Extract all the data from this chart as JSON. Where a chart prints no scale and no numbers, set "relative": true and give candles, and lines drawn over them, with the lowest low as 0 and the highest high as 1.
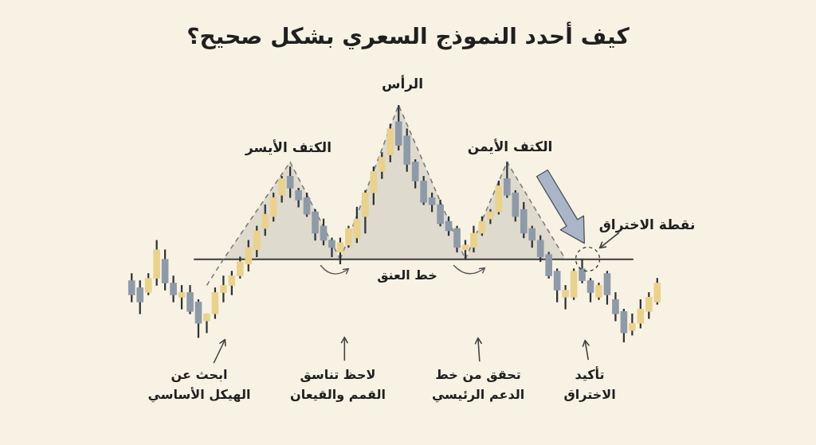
{
  "chart_data": {
    "type": "candlestick",
    "title": "كيف أحدد النموذج السعري بشكل صحيح؟",
    "relative": true,
    "categories": [
      null,
      null,
      null,
      null,
      null,
      null,
      null,
      null,
      null,
      null,
      null,
      null,
      null,
      null,
      null,
      null,
      null,
      null,
      null,
      null,
      null,
      null,
      null,
      null,
      null,
      null,
      null,
      null,
      null,
      null,
      null,
      null,
      null,
      null,
      null,
      null,
      null,
      null,
      null,
      null,
      null,
      null,
      null,
      null,
      null,
      null,
      null,
      null,
      null,
      null,
      null,
      null,
      null,
      null,
      null,
      null,
      null,
      null,
      null,
      null,
      null,
      null,
      null,
      null
    ],
    "ohlc": [
      [
        0.26,
        0.29,
        0.17,
        0.2
      ],
      [
        0.23,
        0.26,
        0.12,
        0.17
      ],
      [
        0.21,
        0.29,
        0.2,
        0.27
      ],
      [
        0.27,
        0.43,
        0.24,
        0.39
      ],
      [
        0.35,
        0.39,
        0.22,
        0.25
      ],
      [
        0.25,
        0.28,
        0.17,
        0.2
      ],
      [
        0.19,
        0.24,
        0.14,
        0.21
      ],
      [
        0.21,
        0.24,
        0.12,
        0.13
      ],
      [
        0.17,
        0.18,
        0.02,
        0.08
      ],
      [
        0.09,
        0.12,
        0.04,
        0.12
      ],
      [
        0.12,
        0.23,
        0.1,
        0.21
      ],
      [
        0.21,
        0.28,
        0.17,
        0.24
      ],
      [
        0.24,
        0.3,
        0.2,
        0.28
      ],
      [
        0.28,
        0.36,
        0.27,
        0.34
      ],
      [
        0.33,
        0.43,
        0.3,
        0.4
      ],
      [
        0.39,
        0.49,
        0.36,
        0.47
      ],
      [
        0.48,
        0.58,
        0.45,
        0.54
      ],
      [
        0.53,
        0.63,
        0.51,
        0.61
      ],
      [
        0.62,
        0.7,
        0.59,
        0.69
      ],
      [
        0.7,
        0.74,
        0.61,
        0.65
      ],
      [
        0.64,
        0.65,
        0.57,
        0.6
      ],
      [
        0.61,
        0.63,
        0.53,
        0.54
      ],
      [
        0.55,
        0.56,
        0.43,
        0.46
      ],
      [
        0.49,
        0.52,
        0.41,
        0.43
      ],
      [
        0.43,
        0.44,
        0.36,
        0.4
      ],
      [
        0.38,
        0.44,
        0.33,
        0.42
      ],
      [
        0.41,
        0.49,
        0.4,
        0.48
      ],
      [
        0.44,
        0.57,
        0.42,
        0.52
      ],
      [
        0.53,
        0.64,
        0.46,
        0.63
      ],
      [
        0.63,
        0.74,
        0.58,
        0.72
      ],
      [
        0.72,
        0.8,
        0.69,
        0.78
      ],
      [
        0.79,
        0.92,
        0.76,
        0.9
      ],
      [
        0.93,
        1.0,
        0.81,
        0.83
      ],
      [
        0.87,
        0.9,
        0.72,
        0.75
      ],
      [
        0.76,
        0.77,
        0.65,
        0.68
      ],
      [
        0.68,
        0.7,
        0.58,
        0.59
      ],
      [
        0.61,
        0.63,
        0.55,
        0.58
      ],
      [
        0.58,
        0.6,
        0.49,
        0.5
      ],
      [
        0.51,
        0.53,
        0.45,
        0.47
      ],
      [
        0.48,
        0.49,
        0.38,
        0.4
      ],
      [
        0.39,
        0.43,
        0.35,
        0.41
      ],
      [
        0.4,
        0.49,
        0.38,
        0.46
      ],
      [
        0.46,
        0.53,
        0.45,
        0.51
      ],
      [
        0.52,
        0.56,
        0.5,
        0.55
      ],
      [
        0.55,
        0.68,
        0.54,
        0.66
      ],
      [
        0.69,
        0.76,
        0.61,
        0.62
      ],
      [
        0.63,
        0.64,
        0.51,
        0.53
      ],
      [
        0.56,
        0.59,
        0.44,
        0.46
      ],
      [
        0.48,
        0.49,
        0.4,
        0.43
      ],
      [
        0.43,
        0.45,
        0.34,
        0.36
      ],
      [
        0.37,
        0.38,
        0.27,
        0.28
      ],
      [
        0.3,
        0.31,
        0.17,
        0.22
      ],
      [
        0.19,
        0.24,
        0.14,
        0.22
      ],
      [
        0.19,
        0.31,
        0.18,
        0.3
      ],
      [
        0.31,
        0.35,
        0.25,
        0.26
      ],
      [
        0.26,
        0.27,
        0.17,
        0.21
      ],
      [
        0.19,
        0.25,
        0.18,
        0.24
      ],
      [
        0.29,
        0.3,
        0.16,
        0.2
      ],
      [
        0.18,
        0.21,
        0.09,
        0.12
      ],
      [
        0.13,
        0.14,
        0.0,
        0.04
      ],
      [
        0.05,
        0.12,
        0.03,
        0.08
      ],
      [
        0.08,
        0.18,
        0.06,
        0.14
      ],
      [
        0.13,
        0.21,
        0.1,
        0.19
      ],
      [
        0.17,
        0.27,
        0.16,
        0.25
      ]
    ],
    "colors": [
      "#8f9aa8",
      "#8f9aa8",
      "#e9d28e",
      "#e9d28e",
      "#8f9aa8",
      "#8f9aa8",
      "#e9d28e",
      "#8f9aa8",
      "#8f9aa8",
      "#e9d28e",
      "#e9d28e",
      "#e9d28e",
      "#e9d28e",
      "#e9d28e",
      "#e9d28e",
      "#e9d28e",
      "#e9d28e",
      "#e9d28e",
      "#e9d28e",
      "#8f9aa8",
      "#8f9aa8",
      "#8f9aa8",
      "#8f9aa8",
      "#8f9aa8",
      "#8f9aa8",
      "#e9d28e",
      "#e9d28e",
      "#e9d28e",
      "#e9d28e",
      "#e9d28e",
      "#e9d28e",
      "#e9d28e",
      "#8f9aa8",
      "#8f9aa8",
      "#8f9aa8",
      "#8f9aa8",
      "#8f9aa8",
      "#8f9aa8",
      "#8f9aa8",
      "#8f9aa8",
      "#e9d28e",
      "#e9d28e",
      "#e9d28e",
      "#e9d28e",
      "#e9d28e",
      "#8f9aa8",
      "#8f9aa8",
      "#8f9aa8",
      "#8f9aa8",
      "#8f9aa8",
      "#8f9aa8",
      "#8f9aa8",
      "#e9d28e",
      "#e9d28e",
      "#8f9aa8",
      "#8f9aa8",
      "#e9d28e",
      "#8f9aa8",
      "#8f9aa8",
      "#8f9aa8",
      "#e9d28e",
      "#e9d28e",
      "#e9d28e",
      "#e9d28e"
    ],
    "series": [
      {
        "type": "line",
        "color": "#7d7d7d",
        "line_style": "dashed",
        "marker": "none",
        "values": [
          null,
          null,
          null,
          null,
          null,
          null,
          null,
          null,
          null,
          0.24,
          null,
          0.35,
          null,
          null,
          null,
          null,
          null,
          null,
          null,
          0.76,
          null,
          null,
          null,
          null,
          null,
          0.35,
          null,
          null,
          null,
          null,
          null,
          null,
          null,
          null,
          null,
          null,
          null,
          null,
          null,
          null,
          null,
          null,
          null,
          null,
          null,
          null,
          null,
          null,
          null,
          null,
          null,
          null,
          null,
          null,
          null,
          null,
          null,
          null,
          null,
          null,
          null,
          null,
          null,
          null
        ],
        "lower": [
          null,
          null,
          null,
          null,
          null,
          null,
          null,
          null,
          null,
          null,
          null,
          0.35,
          null,
          null,
          null,
          null,
          null,
          null,
          null,
          0.35,
          null,
          null,
          null,
          null,
          null,
          0.35,
          null,
          null,
          null,
          null,
          null,
          null,
          null,
          null,
          null,
          null,
          null,
          null,
          null,
          null,
          null,
          null,
          null,
          null,
          null,
          null,
          null,
          null,
          null,
          null,
          null,
          null,
          null,
          null,
          null,
          null,
          null,
          null,
          null,
          null,
          null,
          null,
          null,
          null
        ],
        "upper": [
          null,
          null,
          null,
          null,
          null,
          null,
          null,
          null,
          null,
          null,
          null,
          0.35,
          null,
          null,
          null,
          null,
          null,
          null,
          null,
          0.76,
          null,
          null,
          null,
          null,
          null,
          0.35,
          null,
          null,
          null,
          null,
          null,
          null,
          null,
          null,
          null,
          null,
          null,
          null,
          null,
          null,
          null,
          null,
          null,
          null,
          null,
          null,
          null,
          null,
          null,
          null,
          null,
          null,
          null,
          null,
          null,
          null,
          null,
          null,
          null,
          null,
          null,
          null,
          null,
          null
        ]
      },
      {
        "type": "line",
        "color": "#7d7d7d",
        "line_style": "dashed",
        "marker": "none",
        "values": [
          null,
          null,
          null,
          null,
          null,
          null,
          null,
          null,
          null,
          null,
          null,
          null,
          null,
          null,
          null,
          null,
          null,
          null,
          null,
          null,
          null,
          null,
          null,
          null,
          null,
          0.35,
          null,
          null,
          null,
          null,
          null,
          null,
          1.0,
          null,
          null,
          null,
          null,
          null,
          null,
          null,
          0.35,
          null,
          null,
          null,
          null,
          null,
          null,
          null,
          null,
          null,
          null,
          null,
          null,
          null,
          null,
          null,
          null,
          null,
          null,
          null,
          null,
          null,
          null,
          null
        ],
        "lower": [
          null,
          null,
          null,
          null,
          null,
          null,
          null,
          null,
          null,
          null,
          null,
          null,
          null,
          null,
          null,
          null,
          null,
          null,
          null,
          null,
          null,
          null,
          null,
          null,
          null,
          0.35,
          null,
          null,
          null,
          null,
          null,
          null,
          0.35,
          null,
          null,
          null,
          null,
          null,
          null,
          null,
          0.35,
          null,
          null,
          null,
          null,
          null,
          null,
          null,
          null,
          null,
          null,
          null,
          null,
          null,
          null,
          null,
          null,
          null,
          null,
          null,
          null,
          null,
          null,
          null
        ],
        "upper": [
          null,
          null,
          null,
          null,
          null,
          null,
          null,
          null,
          null,
          null,
          null,
          null,
          null,
          null,
          null,
          null,
          null,
          null,
          null,
          null,
          null,
          null,
          null,
          null,
          null,
          0.35,
          null,
          null,
          null,
          null,
          null,
          null,
          1.0,
          null,
          null,
          null,
          null,
          null,
          null,
          null,
          0.35,
          null,
          null,
          null,
          null,
          null,
          null,
          null,
          null,
          null,
          null,
          null,
          null,
          null,
          null,
          null,
          null,
          null,
          null,
          null,
          null,
          null,
          null,
          null
        ]
      },
      {
        "type": "line",
        "color": "#7d7d7d",
        "line_style": "dashed",
        "marker": "none",
        "values": [
          null,
          null,
          null,
          null,
          null,
          null,
          null,
          null,
          null,
          null,
          null,
          null,
          null,
          null,
          null,
          null,
          null,
          null,
          null,
          null,
          null,
          null,
          null,
          null,
          null,
          null,
          null,
          null,
          null,
          null,
          null,
          null,
          null,
          null,
          null,
          null,
          null,
          null,
          null,
          null,
          0.35,
          null,
          null,
          null,
          null,
          0.76,
          null,
          null,
          null,
          null,
          null,
          null,
          0.35,
          null,
          null,
          null,
          null,
          null,
          null,
          null,
          null,
          null,
          null,
          null
        ],
        "lower": [
          null,
          null,
          null,
          null,
          null,
          null,
          null,
          null,
          null,
          null,
          null,
          null,
          null,
          null,
          null,
          null,
          null,
          null,
          null,
          null,
          null,
          null,
          null,
          null,
          null,
          null,
          null,
          null,
          null,
          null,
          null,
          null,
          null,
          null,
          null,
          null,
          null,
          null,
          null,
          null,
          0.35,
          null,
          null,
          null,
          null,
          0.35,
          null,
          null,
          null,
          null,
          null,
          null,
          0.35,
          null,
          null,
          null,
          null,
          null,
          null,
          null,
          null,
          null,
          null,
          null
        ],
        "upper": [
          null,
          null,
          null,
          null,
          null,
          null,
          null,
          null,
          null,
          null,
          null,
          null,
          null,
          null,
          null,
          null,
          null,
          null,
          null,
          null,
          null,
          null,
          null,
          null,
          null,
          null,
          null,
          null,
          null,
          null,
          null,
          null,
          null,
          null,
          null,
          null,
          null,
          null,
          null,
          null,
          0.35,
          null,
          null,
          null,
          null,
          0.76,
          null,
          null,
          null,
          null,
          null,
          null,
          0.35,
          null,
          null,
          null,
          null,
          null,
          null,
          null,
          null,
          null,
          null,
          null
        ]
      }
    ],
    "ref_lines": [
      {
        "axis": "y",
        "value": 0.35,
        "label": "خط العنق",
        "color": "#3a3a3a"
      }
    ],
    "annotations": [
      "الكتف الأيسر",
      "الرأس",
      "الكتف الأيمن",
      "نقطة الاختراق",
      "ابحث عن\nالهيكل الأساسي",
      "لاحظ تناسق\nالقمم والقيعان",
      "تحقق من خط\nالدعم الرئيسي",
      "تأكيد\nالاختراق"
    ]
  }
}
